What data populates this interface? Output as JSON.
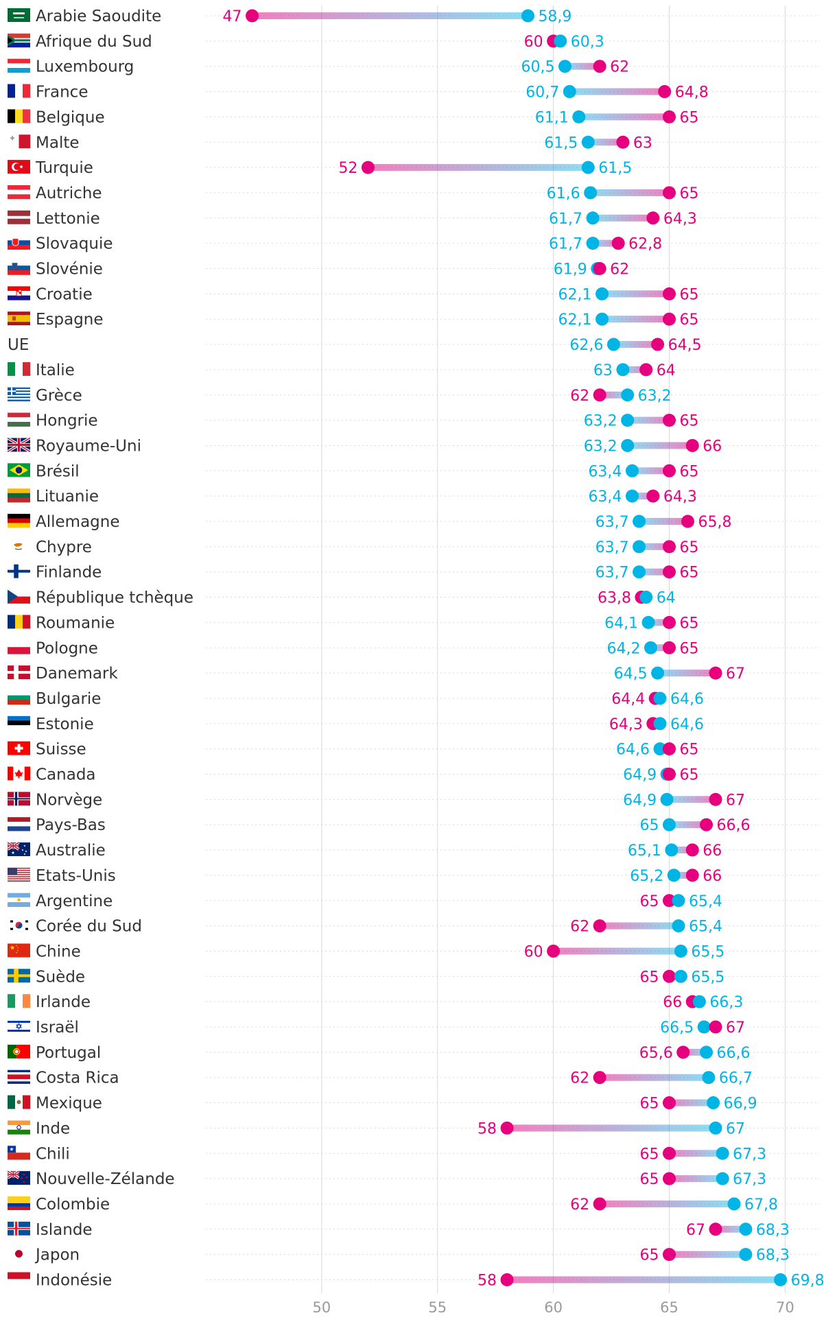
{
  "chart_data": {
    "type": "dumbbell",
    "xlim": [
      45,
      71.5
    ],
    "x_ticks": [
      50,
      55,
      60,
      65,
      70
    ],
    "grid": true,
    "colors": {
      "series_a": "#e6007e",
      "series_b": "#00b4e6",
      "text": "#333333",
      "grid": "#d8d8d8",
      "axis_text": "#9a9a9a"
    },
    "series_names": [
      "series_a",
      "series_b"
    ],
    "rows": [
      {
        "country": "Arabie Saoudite",
        "flag": "flag-saudi-arabia",
        "a": 47,
        "b": 58.9,
        "a_label": "47",
        "b_label": "58,9"
      },
      {
        "country": "Afrique du Sud",
        "flag": "flag-south-africa",
        "a": 60,
        "b": 60.3,
        "a_label": "60",
        "b_label": "60,3"
      },
      {
        "country": "Luxembourg",
        "flag": "flag-luxembourg",
        "a": 62,
        "b": 60.5,
        "a_label": "62",
        "b_label": "60,5"
      },
      {
        "country": "France",
        "flag": "flag-france",
        "a": 64.8,
        "b": 60.7,
        "a_label": "64,8",
        "b_label": "60,7"
      },
      {
        "country": "Belgique",
        "flag": "flag-belgium",
        "a": 65,
        "b": 61.1,
        "a_label": "65",
        "b_label": "61,1"
      },
      {
        "country": "Malte",
        "flag": "flag-malta",
        "a": 63,
        "b": 61.5,
        "a_label": "63",
        "b_label": "61,5"
      },
      {
        "country": "Turquie",
        "flag": "flag-turkey",
        "a": 52,
        "b": 61.5,
        "a_label": "52",
        "b_label": "61,5"
      },
      {
        "country": "Autriche",
        "flag": "flag-austria",
        "a": 65,
        "b": 61.6,
        "a_label": "65",
        "b_label": "61,6"
      },
      {
        "country": "Lettonie",
        "flag": "flag-latvia",
        "a": 64.3,
        "b": 61.7,
        "a_label": "64,3",
        "b_label": "61,7"
      },
      {
        "country": "Slovaquie",
        "flag": "flag-slovakia",
        "a": 62.8,
        "b": 61.7,
        "a_label": "62,8",
        "b_label": "61,7"
      },
      {
        "country": "Slovénie",
        "flag": "flag-slovenia",
        "a": 62,
        "b": 61.9,
        "a_label": "62",
        "b_label": "61,9"
      },
      {
        "country": "Croatie",
        "flag": "flag-croatia",
        "a": 65,
        "b": 62.1,
        "a_label": "65",
        "b_label": "62,1"
      },
      {
        "country": "Espagne",
        "flag": "flag-spain",
        "a": 65,
        "b": 62.1,
        "a_label": "65",
        "b_label": "62,1"
      },
      {
        "country": "UE",
        "flag": "",
        "a": 64.5,
        "b": 62.6,
        "a_label": "64,5",
        "b_label": "62,6"
      },
      {
        "country": "Italie",
        "flag": "flag-italy",
        "a": 64,
        "b": 63,
        "a_label": "64",
        "b_label": "63"
      },
      {
        "country": "Grèce",
        "flag": "flag-greece",
        "a": 62,
        "b": 63.2,
        "a_label": "62",
        "b_label": "63,2"
      },
      {
        "country": "Hongrie",
        "flag": "flag-hungary",
        "a": 65,
        "b": 63.2,
        "a_label": "65",
        "b_label": "63,2"
      },
      {
        "country": "Royaume-Uni",
        "flag": "flag-united-kingdom",
        "a": 66,
        "b": 63.2,
        "a_label": "66",
        "b_label": "63,2"
      },
      {
        "country": "Brésil",
        "flag": "flag-brazil",
        "a": 65,
        "b": 63.4,
        "a_label": "65",
        "b_label": "63,4"
      },
      {
        "country": "Lituanie",
        "flag": "flag-lithuania",
        "a": 64.3,
        "b": 63.4,
        "a_label": "64,3",
        "b_label": "63,4"
      },
      {
        "country": "Allemagne",
        "flag": "flag-germany",
        "a": 65.8,
        "b": 63.7,
        "a_label": "65,8",
        "b_label": "63,7"
      },
      {
        "country": "Chypre",
        "flag": "flag-cyprus",
        "a": 65,
        "b": 63.7,
        "a_label": "65",
        "b_label": "63,7"
      },
      {
        "country": "Finlande",
        "flag": "flag-finland",
        "a": 65,
        "b": 63.7,
        "a_label": "65",
        "b_label": "63,7"
      },
      {
        "country": "République tchèque",
        "flag": "flag-czech-republic",
        "a": 63.8,
        "b": 64,
        "a_label": "63,8",
        "b_label": "64"
      },
      {
        "country": "Roumanie",
        "flag": "flag-romania",
        "a": 65,
        "b": 64.1,
        "a_label": "65",
        "b_label": "64,1"
      },
      {
        "country": "Pologne",
        "flag": "flag-poland",
        "a": 65,
        "b": 64.2,
        "a_label": "65",
        "b_label": "64,2"
      },
      {
        "country": "Danemark",
        "flag": "flag-denmark",
        "a": 67,
        "b": 64.5,
        "a_label": "67",
        "b_label": "64,5"
      },
      {
        "country": "Bulgarie",
        "flag": "flag-bulgaria",
        "a": 64.4,
        "b": 64.6,
        "a_label": "64,4",
        "b_label": "64,6"
      },
      {
        "country": "Estonie",
        "flag": "flag-estonia",
        "a": 64.3,
        "b": 64.6,
        "a_label": "64,3",
        "b_label": "64,6"
      },
      {
        "country": "Suisse",
        "flag": "flag-switzerland",
        "a": 65,
        "b": 64.6,
        "a_label": "65",
        "b_label": "64,6"
      },
      {
        "country": "Canada",
        "flag": "flag-canada",
        "a": 65,
        "b": 64.9,
        "a_label": "65",
        "b_label": "64,9"
      },
      {
        "country": "Norvège",
        "flag": "flag-norway",
        "a": 67,
        "b": 64.9,
        "a_label": "67",
        "b_label": "64,9"
      },
      {
        "country": "Pays-Bas",
        "flag": "flag-netherlands",
        "a": 66.6,
        "b": 65,
        "a_label": "66,6",
        "b_label": "65"
      },
      {
        "country": "Australie",
        "flag": "flag-australia",
        "a": 66,
        "b": 65.1,
        "a_label": "66",
        "b_label": "65,1"
      },
      {
        "country": "Etats-Unis",
        "flag": "flag-united-states",
        "a": 66,
        "b": 65.2,
        "a_label": "66",
        "b_label": "65,2"
      },
      {
        "country": "Argentine",
        "flag": "flag-argentina",
        "a": 65,
        "b": 65.4,
        "a_label": "65",
        "b_label": "65,4"
      },
      {
        "country": "Corée du Sud",
        "flag": "flag-south-korea",
        "a": 62,
        "b": 65.4,
        "a_label": "62",
        "b_label": "65,4"
      },
      {
        "country": "Chine",
        "flag": "flag-china",
        "a": 60,
        "b": 65.5,
        "a_label": "60",
        "b_label": "65,5"
      },
      {
        "country": "Suède",
        "flag": "flag-sweden",
        "a": 65,
        "b": 65.5,
        "a_label": "65",
        "b_label": "65,5"
      },
      {
        "country": "Irlande",
        "flag": "flag-ireland",
        "a": 66,
        "b": 66.3,
        "a_label": "66",
        "b_label": "66,3"
      },
      {
        "country": "Israël",
        "flag": "flag-israel",
        "a": 67,
        "b": 66.5,
        "a_label": "67",
        "b_label": "66,5"
      },
      {
        "country": "Portugal",
        "flag": "flag-portugal",
        "a": 65.6,
        "b": 66.6,
        "a_label": "65,6",
        "b_label": "66,6"
      },
      {
        "country": "Costa Rica",
        "flag": "flag-costa-rica",
        "a": 62,
        "b": 66.7,
        "a_label": "62",
        "b_label": "66,7"
      },
      {
        "country": "Mexique",
        "flag": "flag-mexico",
        "a": 65,
        "b": 66.9,
        "a_label": "65",
        "b_label": "66,9"
      },
      {
        "country": "Inde",
        "flag": "flag-india",
        "a": 58,
        "b": 67,
        "a_label": "58",
        "b_label": "67"
      },
      {
        "country": "Chili",
        "flag": "flag-chile",
        "a": 65,
        "b": 67.3,
        "a_label": "65",
        "b_label": "67,3"
      },
      {
        "country": "Nouvelle-Zélande",
        "flag": "flag-new-zealand",
        "a": 65,
        "b": 67.3,
        "a_label": "65",
        "b_label": "67,3"
      },
      {
        "country": "Colombie",
        "flag": "flag-colombia",
        "a": 62,
        "b": 67.8,
        "a_label": "62",
        "b_label": "67,8"
      },
      {
        "country": "Islande",
        "flag": "flag-iceland",
        "a": 67,
        "b": 68.3,
        "a_label": "67",
        "b_label": "68,3"
      },
      {
        "country": "Japon",
        "flag": "flag-japan",
        "a": 65,
        "b": 68.3,
        "a_label": "65",
        "b_label": "68,3"
      },
      {
        "country": "Indonésie",
        "flag": "flag-indonesia",
        "a": 58,
        "b": 69.8,
        "a_label": "58",
        "b_label": "69,8"
      }
    ]
  }
}
